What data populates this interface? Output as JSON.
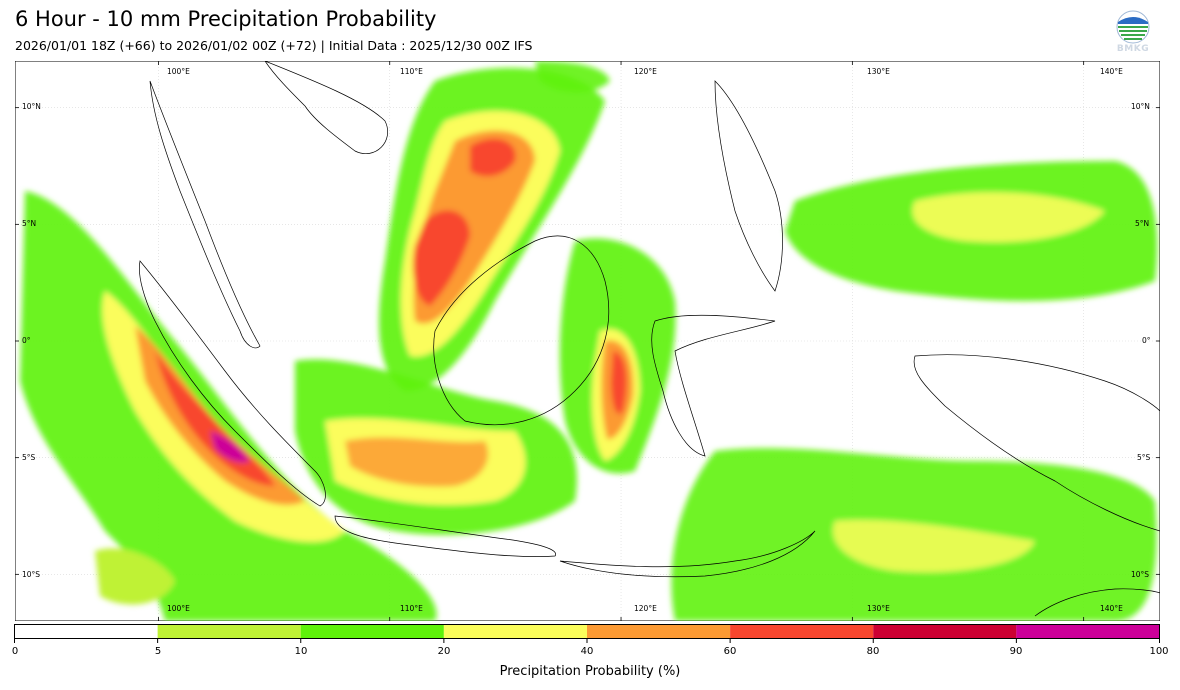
{
  "header": {
    "title": "6 Hour - 10 mm Precipitation Probability",
    "subtitle": "2026/01/01 18Z (+66) to 2026/01/02 00Z (+72) | Initial Data : 2025/12/30 00Z IFS",
    "logo_text": "BMKG"
  },
  "map": {
    "lon_labels": [
      "100°E",
      "110°E",
      "120°E",
      "130°E",
      "140°E"
    ],
    "lat_labels": [
      "10°N",
      "5°N",
      "0°",
      "5°S",
      "10°S"
    ],
    "lon_values": [
      100,
      110,
      120,
      130,
      140
    ],
    "lat_values": [
      10,
      5,
      0,
      -5,
      -10
    ],
    "extent": {
      "lon_min": 93.8,
      "lon_max": 143.3,
      "lat_min": -12.0,
      "lat_max": 12.0
    }
  },
  "colorbar": {
    "title": "Precipitation Probability (%)",
    "ticks": [
      "0",
      "5",
      "10",
      "20",
      "40",
      "60",
      "80",
      "90",
      "100"
    ],
    "colors": [
      "#ffffff",
      "#bff235",
      "#5ff20a",
      "#fbfd5b",
      "#fc9a33",
      "#f8462e",
      "#cc0033",
      "#cc0099"
    ]
  },
  "legend_levels": {
    "level_5": "#bff235",
    "level_10": "#5ff20a",
    "level_20": "#fbfd5b",
    "level_40": "#fc9a33",
    "level_60": "#f8462e",
    "level_80": "#cc0033",
    "level_90": "#cc0099"
  }
}
